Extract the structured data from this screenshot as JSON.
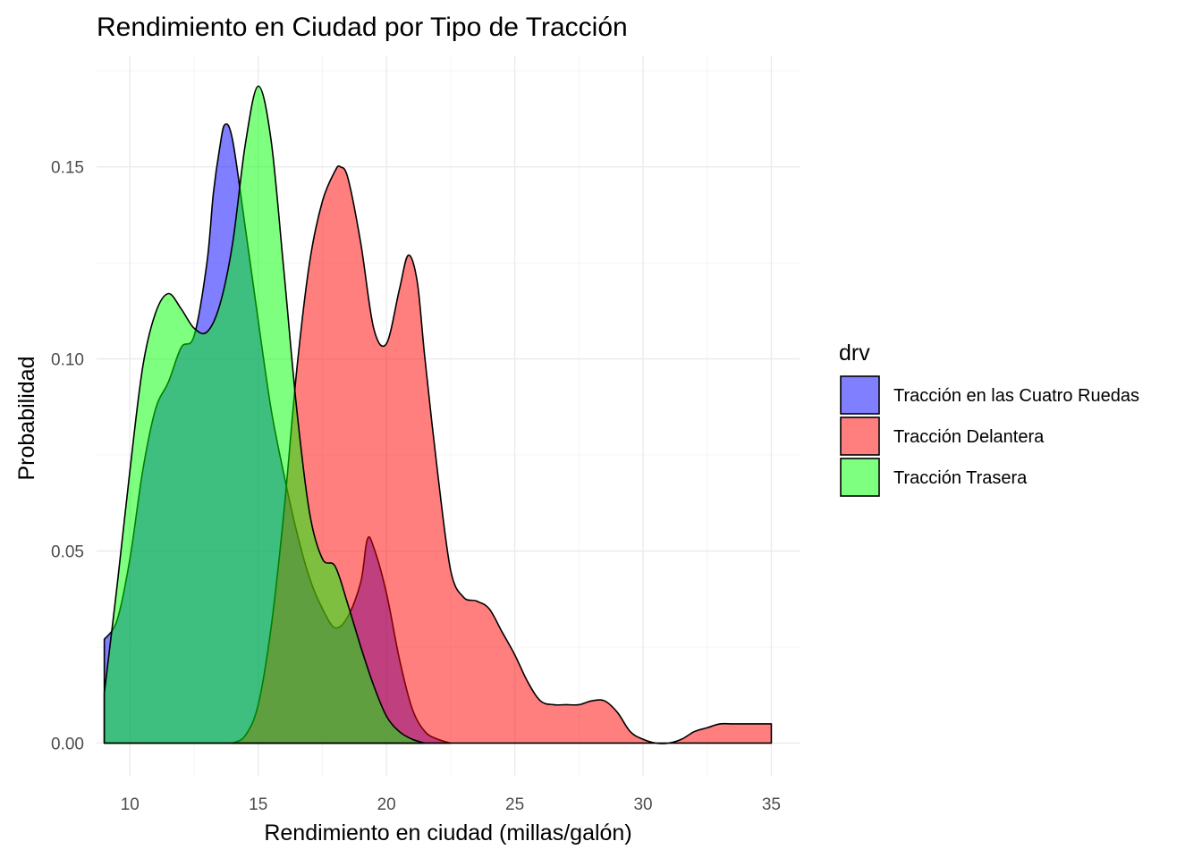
{
  "chart_data": {
    "type": "area",
    "subtype": "density",
    "title": "Rendimiento en Ciudad por Tipo de Tracción",
    "xlabel": "Rendimiento en ciudad (millas/galón)",
    "ylabel": "Probabilidad",
    "xlim": [
      8.7,
      36.1
    ],
    "ylim": [
      -0.0085,
      0.179
    ],
    "x_ticks": [
      10,
      15,
      20,
      25,
      30,
      35
    ],
    "x_tick_labels": [
      "10",
      "15",
      "20",
      "25",
      "30",
      "35"
    ],
    "y_ticks": [
      0.0,
      0.05,
      0.1,
      0.15
    ],
    "y_tick_labels": [
      "0.00",
      "0.05",
      "0.10",
      "0.15"
    ],
    "grid": true,
    "legend": {
      "title": "drv",
      "position": "right"
    },
    "series": [
      {
        "name": "Tracción en las Cuatro Ruedas",
        "color": "#0000FF",
        "opacity": 0.5,
        "points": [
          [
            9.0,
            0.027
          ],
          [
            9.5,
            0.032
          ],
          [
            10.0,
            0.048
          ],
          [
            10.5,
            0.071
          ],
          [
            11.0,
            0.087
          ],
          [
            11.5,
            0.094
          ],
          [
            12.0,
            0.103
          ],
          [
            12.5,
            0.106
          ],
          [
            13.0,
            0.125
          ],
          [
            13.25,
            0.143
          ],
          [
            13.5,
            0.155
          ],
          [
            13.7,
            0.161
          ],
          [
            14.0,
            0.157
          ],
          [
            14.5,
            0.134
          ],
          [
            15.0,
            0.11
          ],
          [
            15.5,
            0.087
          ],
          [
            16.0,
            0.07
          ],
          [
            16.5,
            0.055
          ],
          [
            17.0,
            0.043
          ],
          [
            17.5,
            0.035
          ],
          [
            18.0,
            0.03
          ],
          [
            18.5,
            0.033
          ],
          [
            19.0,
            0.042
          ],
          [
            19.25,
            0.053
          ],
          [
            19.5,
            0.051
          ],
          [
            20.0,
            0.039
          ],
          [
            20.5,
            0.022
          ],
          [
            21.0,
            0.009
          ],
          [
            21.5,
            0.003
          ],
          [
            22.0,
            0.001
          ],
          [
            22.5,
            0.0
          ]
        ]
      },
      {
        "name": "Tracción Delantera",
        "color": "#FF0000",
        "opacity": 0.5,
        "points": [
          [
            14.0,
            0.0
          ],
          [
            14.5,
            0.002
          ],
          [
            15.0,
            0.01
          ],
          [
            15.5,
            0.03
          ],
          [
            16.0,
            0.06
          ],
          [
            16.5,
            0.097
          ],
          [
            17.0,
            0.125
          ],
          [
            17.5,
            0.141
          ],
          [
            18.0,
            0.149
          ],
          [
            18.2,
            0.15
          ],
          [
            18.5,
            0.147
          ],
          [
            19.0,
            0.13
          ],
          [
            19.5,
            0.108
          ],
          [
            20.0,
            0.104
          ],
          [
            20.5,
            0.118
          ],
          [
            20.85,
            0.127
          ],
          [
            21.2,
            0.12
          ],
          [
            21.5,
            0.1
          ],
          [
            22.0,
            0.07
          ],
          [
            22.5,
            0.045
          ],
          [
            23.0,
            0.038
          ],
          [
            23.5,
            0.037
          ],
          [
            24.0,
            0.035
          ],
          [
            24.5,
            0.029
          ],
          [
            25.0,
            0.023
          ],
          [
            25.5,
            0.016
          ],
          [
            26.0,
            0.011
          ],
          [
            26.5,
            0.01
          ],
          [
            27.0,
            0.01
          ],
          [
            27.5,
            0.01
          ],
          [
            28.0,
            0.011
          ],
          [
            28.5,
            0.011
          ],
          [
            29.0,
            0.008
          ],
          [
            29.5,
            0.003
          ],
          [
            30.0,
            0.001
          ],
          [
            30.5,
            0.0
          ],
          [
            31.0,
            0.0
          ],
          [
            31.5,
            0.001
          ],
          [
            32.0,
            0.003
          ],
          [
            32.5,
            0.004
          ],
          [
            33.0,
            0.005
          ],
          [
            33.5,
            0.005
          ],
          [
            34.0,
            0.005
          ],
          [
            34.5,
            0.005
          ],
          [
            35.0,
            0.005
          ]
        ]
      },
      {
        "name": "Tracción Trasera",
        "color": "#00FF00",
        "opacity": 0.5,
        "points": [
          [
            9.0,
            0.013
          ],
          [
            9.5,
            0.041
          ],
          [
            10.0,
            0.071
          ],
          [
            10.5,
            0.098
          ],
          [
            11.0,
            0.112
          ],
          [
            11.5,
            0.117
          ],
          [
            12.0,
            0.113
          ],
          [
            12.5,
            0.108
          ],
          [
            13.0,
            0.107
          ],
          [
            13.5,
            0.114
          ],
          [
            14.0,
            0.13
          ],
          [
            14.5,
            0.156
          ],
          [
            15.0,
            0.171
          ],
          [
            15.5,
            0.157
          ],
          [
            16.0,
            0.123
          ],
          [
            16.5,
            0.087
          ],
          [
            17.0,
            0.06
          ],
          [
            17.5,
            0.048
          ],
          [
            18.0,
            0.046
          ],
          [
            18.5,
            0.036
          ],
          [
            19.0,
            0.025
          ],
          [
            19.5,
            0.015
          ],
          [
            20.0,
            0.007
          ],
          [
            20.5,
            0.003
          ],
          [
            21.0,
            0.001
          ],
          [
            21.5,
            0.0
          ]
        ]
      }
    ],
    "bottom_curves": {
      "note": "",
      "points": []
    }
  }
}
